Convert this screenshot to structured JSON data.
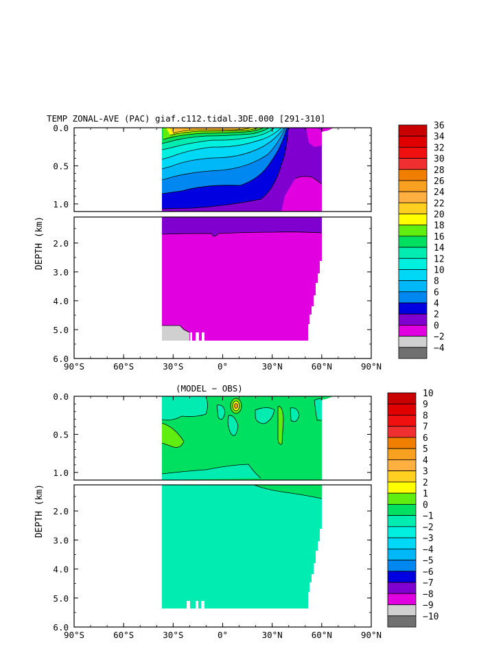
{
  "chart_data": [
    {
      "type": "contour",
      "title": "TEMP ZONAL-AVE (PAC) giaf.c112.tidal.3DE.000 [291-310]",
      "xlabel": "",
      "ylabel": "DEPTH (km)",
      "xlim": [
        -90,
        90
      ],
      "x_ticks": [
        -90,
        -60,
        -30,
        0,
        30,
        60,
        90
      ],
      "x_tick_labels": [
        "90°S",
        "60°S",
        "30°S",
        "0°",
        "30°N",
        "60°N",
        "90°N"
      ],
      "y_upper_ticks": [
        0.0,
        0.5,
        1.0
      ],
      "y_upper_tick_labels": [
        "0.0",
        "0.5",
        "1.0"
      ],
      "y_lower_ticks": [
        2.0,
        3.0,
        4.0,
        5.0,
        6.0
      ],
      "y_lower_tick_labels": [
        "2.0",
        "3.0",
        "4.0",
        "5.0",
        "6.0"
      ],
      "ylim_upper": [
        0.0,
        1.1
      ],
      "ylim_lower": [
        1.1,
        6.0
      ],
      "colorbar_levels": [
        36,
        34,
        32,
        30,
        28,
        26,
        24,
        22,
        20,
        18,
        16,
        14,
        12,
        10,
        8,
        6,
        4,
        2,
        0,
        -2,
        -4
      ],
      "colorbar_labels": [
        "36",
        "34",
        "32",
        "30",
        "28",
        "26",
        "24",
        "22",
        "20",
        "18",
        "16",
        "14",
        "12",
        "10",
        "8",
        "6",
        "4",
        "2",
        "0",
        "−2",
        "−4"
      ],
      "colorbar_colors": [
        "#c80000",
        "#e00000",
        "#f01010",
        "#f03030",
        "#f07e00",
        "#f8a020",
        "#ffb040",
        "#ffd020",
        "#ffff00",
        "#60ee10",
        "#00e060",
        "#00ecb0",
        "#00f0e0",
        "#00d8f8",
        "#00b8f8",
        "#0088f0",
        "#0000e0",
        "#8000d0",
        "#e000e0",
        "#d0d0d0",
        "#707070"
      ]
    },
    {
      "type": "contour",
      "title": "(MODEL − OBS)",
      "xlabel": "",
      "ylabel": "DEPTH (km)",
      "xlim": [
        -90,
        90
      ],
      "x_ticks": [
        -90,
        -60,
        -30,
        0,
        30,
        60,
        90
      ],
      "x_tick_labels": [
        "90°S",
        "60°S",
        "30°S",
        "0°",
        "30°N",
        "60°N",
        "90°N"
      ],
      "y_upper_ticks": [
        0.0,
        0.5,
        1.0
      ],
      "y_upper_tick_labels": [
        "0.0",
        "0.5",
        "1.0"
      ],
      "y_lower_ticks": [
        2.0,
        3.0,
        4.0,
        5.0,
        6.0
      ],
      "y_lower_tick_labels": [
        "2.0",
        "3.0",
        "4.0",
        "5.0",
        "6.0"
      ],
      "ylim_upper": [
        0.0,
        1.1
      ],
      "ylim_lower": [
        1.1,
        6.0
      ],
      "colorbar_levels": [
        10,
        9,
        8,
        7,
        6,
        5,
        4,
        3,
        2,
        1,
        0,
        -1,
        -2,
        -3,
        -4,
        -5,
        -6,
        -7,
        -8,
        -9,
        -10
      ],
      "colorbar_labels": [
        "10",
        "9",
        "8",
        "7",
        "6",
        "5",
        "4",
        "3",
        "2",
        "1",
        "0",
        "−1",
        "−2",
        "−3",
        "−4",
        "−5",
        "−6",
        "−7",
        "−8",
        "−9",
        "−10"
      ],
      "colorbar_colors": [
        "#c80000",
        "#e00000",
        "#f01010",
        "#f03030",
        "#f07e00",
        "#f8a020",
        "#ffb040",
        "#ffd020",
        "#ffff00",
        "#60ee10",
        "#00e060",
        "#00ecb0",
        "#00f0e0",
        "#00d8f8",
        "#00b8f8",
        "#0088f0",
        "#0000e0",
        "#8000d0",
        "#e000e0",
        "#d0d0d0",
        "#707070"
      ]
    }
  ]
}
